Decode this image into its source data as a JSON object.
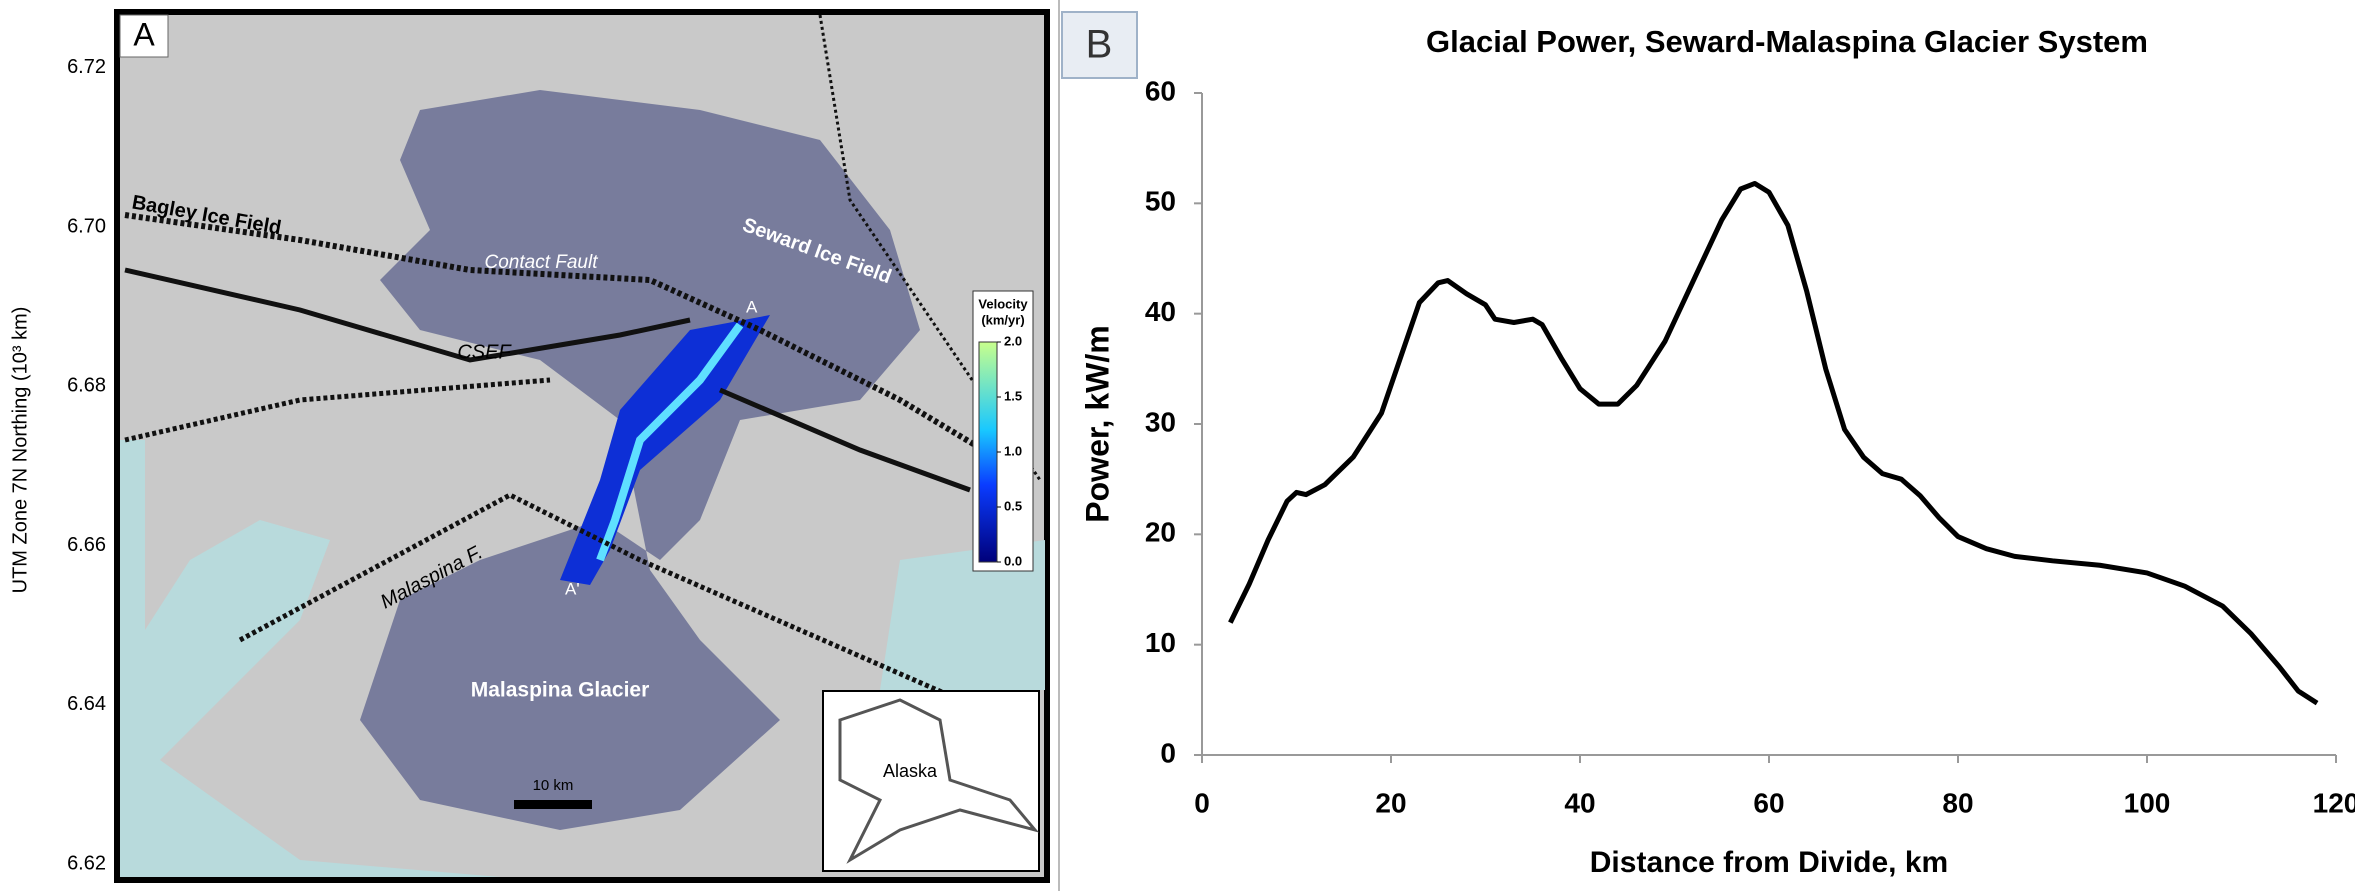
{
  "panel_a": {
    "label": "A",
    "y_label": "UTM Zone 7N Northing (10³ km)",
    "ylim": [
      6.618,
      6.727
    ],
    "yticks": [
      {
        "value": 6.72,
        "label": "6.72"
      },
      {
        "value": 6.7,
        "label": "6.70"
      },
      {
        "value": 6.68,
        "label": "6.68"
      },
      {
        "value": 6.66,
        "label": "6.66"
      },
      {
        "value": 6.64,
        "label": "6.64"
      },
      {
        "value": 6.62,
        "label": "6.62"
      }
    ],
    "places": [
      "Bagley Ice Field",
      "Seward Ice Field",
      "Contact Fault",
      "CSEF",
      "Malaspina F.",
      "Malaspina Glacier"
    ],
    "profile_start": "A",
    "profile_end": "A'",
    "scale_bar": "10 km",
    "inset_label": "Alaska",
    "colorbar": {
      "title": "Velocity",
      "unit": "(km/yr)",
      "ylim": [
        0,
        2
      ],
      "ticks": [
        {
          "value": 2,
          "label": "2.0"
        },
        {
          "value": 1.5,
          "label": "1.5"
        },
        {
          "value": 1,
          "label": "1.0"
        },
        {
          "value": 0.5,
          "label": "0.5"
        },
        {
          "value": 0,
          "label": "0.0"
        }
      ]
    }
  },
  "chart_data": {
    "type": "line",
    "panel_label": "B",
    "title": "Glacial Power, Seward-Malaspina Glacier System",
    "x_label": "Distance from Divide, km",
    "y_label": "Power, kW/m",
    "xlim": [
      0,
      120
    ],
    "xticks": [
      0,
      20,
      40,
      60,
      80,
      100,
      120
    ],
    "ylim": [
      0,
      60
    ],
    "yticks": [
      0,
      10,
      20,
      30,
      40,
      50,
      60
    ],
    "x": [
      3,
      5,
      7,
      9,
      10,
      11,
      13,
      16,
      19,
      21,
      23,
      25,
      26,
      28,
      30,
      31,
      33,
      35,
      36,
      38,
      40,
      42,
      44,
      46,
      49,
      52,
      55,
      57,
      58.5,
      60,
      62,
      64,
      66,
      68,
      70,
      72,
      74,
      76,
      78,
      80,
      83,
      86,
      90,
      95,
      100,
      104,
      108,
      111,
      114,
      116,
      118
    ],
    "series": [
      {
        "color": "#000000",
        "values": [
          12,
          15.5,
          19.5,
          23,
          23.8,
          23.6,
          24.5,
          27,
          31,
          36,
          41,
          42.8,
          43,
          41.8,
          40.8,
          39.5,
          39.2,
          39.5,
          39,
          36,
          33.2,
          31.8,
          31.8,
          33.5,
          37.5,
          43,
          48.5,
          51.3,
          51.8,
          51,
          48,
          42,
          35,
          29.5,
          27,
          25.5,
          25,
          23.5,
          21.5,
          19.8,
          18.7,
          18,
          17.6,
          17.2,
          16.5,
          15.3,
          13.5,
          11,
          8,
          5.8,
          4.7
        ]
      }
    ]
  }
}
